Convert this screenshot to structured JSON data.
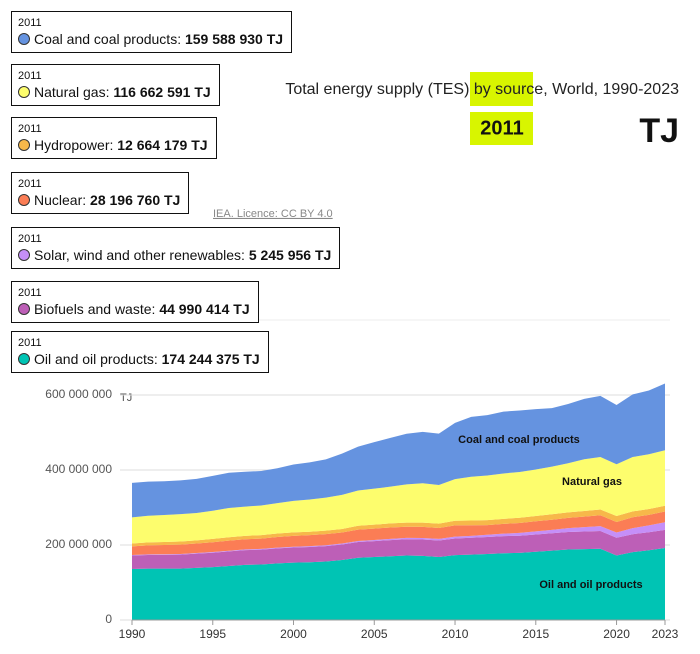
{
  "chart_data": {
    "type": "stacked_area",
    "title": "Total energy supply (TES) by source, World, 1990-2023",
    "unit": "TJ",
    "source": "IEA. Licence: CC BY 4.0",
    "selected_index": 21,
    "x": [
      1990,
      1991,
      1992,
      1993,
      1994,
      1995,
      1996,
      1997,
      1998,
      1999,
      2000,
      2001,
      2002,
      2003,
      2004,
      2005,
      2006,
      2007,
      2008,
      2009,
      2010,
      2011,
      2012,
      2013,
      2014,
      2015,
      2016,
      2017,
      2018,
      2019,
      2020,
      2021,
      2022,
      2023
    ],
    "xlim": [
      1990,
      2023
    ],
    "xticks": [
      1990,
      1995,
      2000,
      2005,
      2010,
      2015,
      2020,
      2023
    ],
    "ylim": [
      0,
      800000000
    ],
    "yticks": [
      0,
      {
        "value": 200000000,
        "label": "200 000 000"
      },
      {
        "value": 400000000,
        "label": "400 000 000"
      },
      {
        "value": 600000000,
        "label": "600 000 000"
      }
    ],
    "grid": true,
    "series": [
      {
        "name": "Oil and oil products",
        "color": "#00c4b4",
        "values": [
          136000000,
          137000000,
          137000000,
          137000000,
          139000000,
          141000000,
          144000000,
          147000000,
          148000000,
          151000000,
          153000000,
          154000000,
          156000000,
          160000000,
          166000000,
          168000000,
          170000000,
          172000000,
          171000000,
          168000000,
          173000000,
          174244375,
          176000000,
          178000000,
          179000000,
          182000000,
          185000000,
          188000000,
          189000000,
          190000000,
          172000000,
          181000000,
          186000000,
          192000000
        ],
        "value_labels": [
          null,
          null,
          null,
          null,
          null,
          null,
          null,
          null,
          null,
          null,
          null,
          null,
          null,
          null,
          null,
          null,
          null,
          null,
          null,
          null,
          null,
          "174 244 375 TJ",
          null,
          null,
          null,
          null,
          null,
          null,
          null,
          null,
          null,
          null,
          null,
          null
        ]
      },
      {
        "name": "Biofuels and waste",
        "color": "#bd5fb7",
        "values": [
          36000000,
          36500000,
          37000000,
          37500000,
          38000000,
          38500000,
          39000000,
          39300000,
          39600000,
          40000000,
          40300000,
          40600000,
          41000000,
          41500000,
          42000000,
          42500000,
          43000000,
          43300000,
          43700000,
          44000000,
          44500000,
          44990414,
          45300000,
          45600000,
          45800000,
          46000000,
          46200000,
          46600000,
          47000000,
          47400000,
          47200000,
          47800000,
          48000000,
          48300000
        ],
        "value_labels": [
          null,
          null,
          null,
          null,
          null,
          null,
          null,
          null,
          null,
          null,
          null,
          null,
          null,
          null,
          null,
          null,
          null,
          null,
          null,
          null,
          null,
          "44 990 414 TJ",
          null,
          null,
          null,
          null,
          null,
          null,
          null,
          null,
          null,
          null,
          null,
          null
        ]
      },
      {
        "name": "Solar, wind and other renewables",
        "color": "#c58ff8",
        "values": [
          1400000,
          1500000,
          1500000,
          1600000,
          1600000,
          1700000,
          1800000,
          1900000,
          2000000,
          2100000,
          2200000,
          2300000,
          2400000,
          2600000,
          2800000,
          3000000,
          3300000,
          3600000,
          3900000,
          4200000,
          4700000,
          5245956,
          5900000,
          6600000,
          7400000,
          8200000,
          9100000,
          10300000,
          11600000,
          12900000,
          14300000,
          16200000,
          18300000,
          20500000
        ],
        "value_labels": [
          null,
          null,
          null,
          null,
          null,
          null,
          null,
          null,
          null,
          null,
          null,
          null,
          null,
          null,
          null,
          null,
          null,
          null,
          null,
          null,
          null,
          "5 245 956 TJ",
          null,
          null,
          null,
          null,
          null,
          null,
          null,
          null,
          null,
          null,
          null,
          null
        ]
      },
      {
        "name": "Nuclear",
        "color": "#fb7d55",
        "values": [
          22900000,
          24000000,
          24400000,
          25000000,
          25300000,
          26200000,
          27000000,
          27000000,
          27400000,
          28300000,
          28700000,
          29300000,
          29600000,
          29200000,
          30300000,
          30200000,
          30500000,
          29900000,
          29700000,
          29300000,
          30100000,
          28196760,
          25700000,
          26000000,
          26600000,
          27000000,
          27200000,
          27400000,
          28000000,
          29200000,
          27900000,
          29000000,
          28000000,
          28500000
        ],
        "value_labels": [
          null,
          null,
          null,
          null,
          null,
          null,
          null,
          null,
          null,
          null,
          null,
          null,
          null,
          null,
          null,
          null,
          null,
          null,
          null,
          null,
          null,
          "28 196 760 TJ",
          null,
          null,
          null,
          null,
          null,
          null,
          null,
          null,
          null,
          null,
          null,
          null
        ]
      },
      {
        "name": "Hydropower",
        "color": "#f7b84a",
        "values": [
          7800000,
          8000000,
          8000000,
          8400000,
          8500000,
          8900000,
          9000000,
          9200000,
          9300000,
          9300000,
          9400000,
          9300000,
          9500000,
          9500000,
          10100000,
          10500000,
          10800000,
          10900000,
          11400000,
          11500000,
          12400000,
          12664179,
          13300000,
          13600000,
          14000000,
          14000000,
          14500000,
          14600000,
          15100000,
          15300000,
          15800000,
          15600000,
          15600000,
          15300000
        ],
        "value_labels": [
          null,
          null,
          null,
          null,
          null,
          null,
          null,
          null,
          null,
          null,
          null,
          null,
          null,
          null,
          null,
          null,
          null,
          null,
          null,
          null,
          null,
          "12 664 179 TJ",
          null,
          null,
          null,
          null,
          null,
          null,
          null,
          null,
          null,
          null,
          null,
          null
        ]
      },
      {
        "name": "Natural gas",
        "color": "#fdfd6d",
        "values": [
          69500000,
          71000000,
          72000000,
          73000000,
          73000000,
          75000000,
          78000000,
          78000000,
          79000000,
          81000000,
          84000000,
          86000000,
          88000000,
          91000000,
          94000000,
          96000000,
          98000000,
          102000000,
          105000000,
          103000000,
          111000000,
          116662591,
          119000000,
          121000000,
          122000000,
          124000000,
          127000000,
          131000000,
          138000000,
          140000000,
          138000000,
          145000000,
          146000000,
          148000000
        ],
        "value_labels": [
          null,
          null,
          null,
          null,
          null,
          null,
          null,
          null,
          null,
          null,
          null,
          null,
          null,
          null,
          null,
          null,
          null,
          null,
          null,
          null,
          null,
          "116 662 591 TJ",
          null,
          null,
          null,
          null,
          null,
          null,
          null,
          null,
          null,
          null,
          null,
          null
        ]
      },
      {
        "name": "Coal and coal products",
        "color": "#6593e0",
        "values": [
          92000000,
          91000000,
          90000000,
          90000000,
          91000000,
          93000000,
          94000000,
          93000000,
          92000000,
          93000000,
          97000000,
          99000000,
          102000000,
          110000000,
          117000000,
          124000000,
          130000000,
          135000000,
          137000000,
          137000000,
          150000000,
          159588930,
          161000000,
          165000000,
          164000000,
          161000000,
          156000000,
          158000000,
          161000000,
          163000000,
          158000000,
          167000000,
          170000000,
          178000000
        ],
        "value_labels": [
          null,
          null,
          null,
          null,
          null,
          null,
          null,
          null,
          null,
          null,
          null,
          null,
          null,
          null,
          null,
          null,
          null,
          null,
          null,
          null,
          null,
          "159 588 930 TJ",
          null,
          null,
          null,
          null,
          null,
          null,
          null,
          null,
          null,
          null,
          null,
          null
        ]
      }
    ]
  }
}
